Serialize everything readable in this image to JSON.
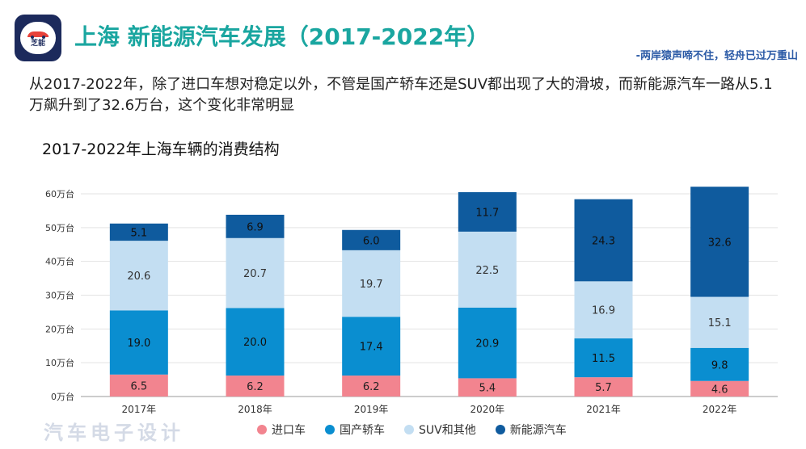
{
  "header": {
    "logo_text": "芝能",
    "title": "上海 新能源汽车发展（2017-2022年）",
    "tagline": "-两岸猿声啼不住，轻舟已过万重山"
  },
  "description": "从2017-2022年，除了进口车想对稳定以外，不管是国产轿车还是SUV都出现了大的滑坡，而新能源汽车一路从5.1万飙升到了32.6万台，这个变化非常明显",
  "watermark": "汽车电子设计",
  "chart_data": {
    "type": "bar",
    "stacked": true,
    "title": "2017-2022年上海车辆的消费结构",
    "categories": [
      "2017年",
      "2018年",
      "2019年",
      "2020年",
      "2021年",
      "2022年"
    ],
    "ylim": [
      0,
      60
    ],
    "yticks": [
      0,
      10,
      20,
      30,
      40,
      50,
      60
    ],
    "ytick_labels": [
      "0万台",
      "10万台",
      "20万台",
      "30万台",
      "40万台",
      "50万台",
      "60万台"
    ],
    "grid": true,
    "legend_position": "bottom",
    "series": [
      {
        "name": "进口车",
        "color": "#f2848f",
        "values": [
          6.5,
          6.2,
          6.2,
          5.4,
          5.7,
          4.6
        ]
      },
      {
        "name": "国产轿车",
        "color": "#0a8ed0",
        "values": [
          19.0,
          20.0,
          17.4,
          20.9,
          11.5,
          9.8
        ]
      },
      {
        "name": "SUV和其他",
        "color": "#c3def2",
        "values": [
          20.6,
          20.7,
          19.7,
          22.5,
          16.9,
          15.1
        ]
      },
      {
        "name": "新能源汽车",
        "color": "#0f5b9e",
        "values": [
          5.1,
          6.9,
          6.0,
          11.7,
          24.3,
          32.6
        ]
      }
    ]
  }
}
